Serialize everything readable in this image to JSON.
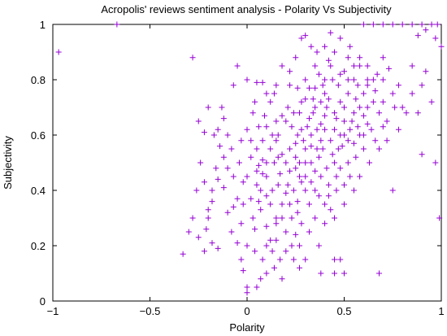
{
  "chart_data": {
    "type": "scatter",
    "title": "Acropolis' reviews sentiment analysis - Polarity Vs Subjectivity",
    "xlabel": "Polarity",
    "ylabel": "Subjectivity",
    "xlim": [
      -1,
      1
    ],
    "ylim": [
      0,
      1
    ],
    "xticks": [
      {
        "value": -1,
        "label": "−1"
      },
      {
        "value": -0.5,
        "label": "−0.5"
      },
      {
        "value": 0,
        "label": "0"
      },
      {
        "value": 0.5,
        "label": "0.5"
      },
      {
        "value": 1,
        "label": "1"
      }
    ],
    "yticks": [
      {
        "value": 0,
        "label": "0"
      },
      {
        "value": 0.2,
        "label": "0.2"
      },
      {
        "value": 0.4,
        "label": "0.4"
      },
      {
        "value": 0.6,
        "label": "0.6"
      },
      {
        "value": 0.8,
        "label": "0.8"
      },
      {
        "value": 1,
        "label": "1"
      }
    ],
    "grid": false,
    "marker": "plus",
    "marker_color": "#9400d3",
    "series": [
      {
        "points": [
          [
            -0.97,
            0.9
          ],
          [
            -0.67,
            1.0
          ],
          [
            -0.28,
            0.88
          ],
          [
            -0.33,
            0.17
          ],
          [
            -0.3,
            0.25
          ],
          [
            -0.25,
            0.23
          ],
          [
            -0.26,
            0.4
          ],
          [
            -0.24,
            0.5
          ],
          [
            -0.22,
            0.43
          ],
          [
            -0.2,
            0.3
          ],
          [
            -0.18,
            0.21
          ],
          [
            -0.18,
            0.36
          ],
          [
            -0.15,
            0.19
          ],
          [
            -0.25,
            0.65
          ],
          [
            -0.22,
            0.61
          ],
          [
            -0.2,
            0.7
          ],
          [
            -0.14,
            0.56
          ],
          [
            -0.12,
            0.66
          ],
          [
            -0.1,
            0.48
          ],
          [
            -0.08,
            0.25
          ],
          [
            -0.07,
            0.34
          ],
          [
            -0.07,
            0.45
          ],
          [
            -0.05,
            0.21
          ],
          [
            -0.03,
            0.58
          ],
          [
            -0.05,
            0.85
          ],
          [
            -0.07,
            0.78
          ],
          [
            -0.13,
            0.7
          ],
          [
            -0.15,
            0.62
          ],
          [
            -0.17,
            0.6
          ],
          [
            -0.21,
            0.26
          ],
          [
            -0.16,
            0.48
          ],
          [
            -0.12,
            0.41
          ],
          [
            -0.1,
            0.32
          ],
          [
            -0.05,
            0.37
          ],
          [
            -0.03,
            0.28
          ],
          [
            -0.02,
            0.43
          ],
          [
            0.0,
            0.2
          ],
          [
            -0.03,
            0.15
          ],
          [
            -0.02,
            0.11
          ],
          [
            0.0,
            0.05
          ],
          [
            0.0,
            0.03
          ],
          [
            0.05,
            0.05
          ],
          [
            0.03,
            0.3
          ],
          [
            0.02,
            0.37
          ],
          [
            0.0,
            0.45
          ],
          [
            0.02,
            0.52
          ],
          [
            0.0,
            0.62
          ],
          [
            0.03,
            0.68
          ],
          [
            0.0,
            0.8
          ],
          [
            0.05,
            0.79
          ],
          [
            0.08,
            0.79
          ],
          [
            0.1,
            0.1
          ],
          [
            0.12,
            0.22
          ],
          [
            0.1,
            0.27
          ],
          [
            0.07,
            0.33
          ],
          [
            0.1,
            0.38
          ],
          [
            0.08,
            0.46
          ],
          [
            0.06,
            0.49
          ],
          [
            0.05,
            0.55
          ],
          [
            0.08,
            0.58
          ],
          [
            0.1,
            0.63
          ],
          [
            0.09,
            0.67
          ],
          [
            0.12,
            0.72
          ],
          [
            0.14,
            0.75
          ],
          [
            0.16,
            0.42
          ],
          [
            0.14,
            0.5
          ],
          [
            0.18,
            0.53
          ],
          [
            0.16,
            0.6
          ],
          [
            0.2,
            0.65
          ],
          [
            0.21,
            0.7
          ],
          [
            0.22,
            0.78
          ],
          [
            0.22,
            0.83
          ],
          [
            0.2,
            0.39
          ],
          [
            0.22,
            0.47
          ],
          [
            0.23,
            0.3
          ],
          [
            0.25,
            0.24
          ],
          [
            0.27,
            0.2
          ],
          [
            0.24,
            0.15
          ],
          [
            0.28,
            0.43
          ],
          [
            0.27,
            0.5
          ],
          [
            0.25,
            0.57
          ],
          [
            0.28,
            0.62
          ],
          [
            0.27,
            0.68
          ],
          [
            0.3,
            0.73
          ],
          [
            0.3,
            0.8
          ],
          [
            0.3,
            0.55
          ],
          [
            0.33,
            0.5
          ],
          [
            0.33,
            0.6
          ],
          [
            0.32,
            0.66
          ],
          [
            0.35,
            0.7
          ],
          [
            0.35,
            0.77
          ],
          [
            0.35,
            0.85
          ],
          [
            0.33,
            0.92
          ],
          [
            0.3,
            0.96
          ],
          [
            0.28,
            0.95
          ],
          [
            0.32,
            0.35
          ],
          [
            0.35,
            0.4
          ],
          [
            0.38,
            0.45
          ],
          [
            0.37,
            0.52
          ],
          [
            0.38,
            0.58
          ],
          [
            0.4,
            0.62
          ],
          [
            0.4,
            0.67
          ],
          [
            0.42,
            0.73
          ],
          [
            0.4,
            0.8
          ],
          [
            0.43,
            0.85
          ],
          [
            0.45,
            0.9
          ],
          [
            0.43,
            0.97
          ],
          [
            0.38,
            0.1
          ],
          [
            0.45,
            0.1
          ],
          [
            0.5,
            0.1
          ],
          [
            0.48,
            0.15
          ],
          [
            0.45,
            0.3
          ],
          [
            0.42,
            0.38
          ],
          [
            0.46,
            0.45
          ],
          [
            0.45,
            0.5
          ],
          [
            0.47,
            0.55
          ],
          [
            0.48,
            0.6
          ],
          [
            0.5,
            0.65
          ],
          [
            0.5,
            0.7
          ],
          [
            0.52,
            0.75
          ],
          [
            0.55,
            0.8
          ],
          [
            0.55,
            0.68
          ],
          [
            0.53,
            0.62
          ],
          [
            0.55,
            0.57
          ],
          [
            0.52,
            0.5
          ],
          [
            0.5,
            0.42
          ],
          [
            0.55,
            0.85
          ],
          [
            0.58,
            0.88
          ],
          [
            0.6,
            0.75
          ],
          [
            0.62,
            0.8
          ],
          [
            0.6,
            0.67
          ],
          [
            0.58,
            0.6
          ],
          [
            0.62,
            0.7
          ],
          [
            0.65,
            0.72
          ],
          [
            0.65,
            0.8
          ],
          [
            0.7,
            0.8
          ],
          [
            0.75,
            0.75
          ],
          [
            0.72,
            0.65
          ],
          [
            0.8,
            0.7
          ],
          [
            0.75,
            0.4
          ],
          [
            0.68,
            0.1
          ],
          [
            0.6,
            1.0
          ],
          [
            0.65,
            1.0
          ],
          [
            0.7,
            1.0
          ],
          [
            0.75,
            1.0
          ],
          [
            0.8,
            1.0
          ],
          [
            0.85,
            1.0
          ],
          [
            0.9,
            1.0
          ],
          [
            0.95,
            1.0
          ],
          [
            0.98,
            1.0
          ],
          [
            0.88,
            0.96
          ],
          [
            0.92,
            0.98
          ],
          [
            0.97,
            0.95
          ],
          [
            1.0,
            0.92
          ],
          [
            0.85,
            0.85
          ],
          [
            0.92,
            0.83
          ],
          [
            0.95,
            0.72
          ],
          [
            0.9,
            0.53
          ],
          [
            0.97,
            0.5
          ],
          [
            0.99,
            0.3
          ],
          [
            0.12,
            0.55
          ],
          [
            0.15,
            0.58
          ],
          [
            0.17,
            0.46
          ],
          [
            0.13,
            0.4
          ],
          [
            0.1,
            0.45
          ],
          [
            0.18,
            0.35
          ],
          [
            0.15,
            0.3
          ],
          [
            0.2,
            0.25
          ],
          [
            0.22,
            0.35
          ],
          [
            0.24,
            0.4
          ],
          [
            0.26,
            0.36
          ],
          [
            0.3,
            0.4
          ],
          [
            0.3,
            0.45
          ],
          [
            0.25,
            0.48
          ],
          [
            0.22,
            0.55
          ],
          [
            0.26,
            0.6
          ],
          [
            0.23,
            0.63
          ],
          [
            0.18,
            0.67
          ],
          [
            0.15,
            0.65
          ],
          [
            0.13,
            0.6
          ],
          [
            0.08,
            0.51
          ],
          [
            0.05,
            0.42
          ],
          [
            0.05,
            0.47
          ],
          [
            0.07,
            0.4
          ],
          [
            0.12,
            0.35
          ],
          [
            0.1,
            0.2
          ],
          [
            0.13,
            0.18
          ],
          [
            0.17,
            0.15
          ],
          [
            0.2,
            0.18
          ],
          [
            0.26,
            0.32
          ],
          [
            0.28,
            0.28
          ],
          [
            0.32,
            0.25
          ],
          [
            0.35,
            0.3
          ],
          [
            0.4,
            0.35
          ],
          [
            0.42,
            0.42
          ],
          [
            0.35,
            0.47
          ],
          [
            0.36,
            0.55
          ],
          [
            0.43,
            0.58
          ],
          [
            0.45,
            0.62
          ],
          [
            0.38,
            0.64
          ],
          [
            0.34,
            0.68
          ],
          [
            0.38,
            0.72
          ],
          [
            0.45,
            0.68
          ],
          [
            0.48,
            0.72
          ],
          [
            0.47,
            0.78
          ],
          [
            0.4,
            0.75
          ],
          [
            0.37,
            0.82
          ],
          [
            0.42,
            0.87
          ],
          [
            0.5,
            0.83
          ],
          [
            0.52,
            0.88
          ],
          [
            0.56,
            0.73
          ],
          [
            0.58,
            0.7
          ],
          [
            0.54,
            0.65
          ],
          [
            0.5,
            0.6
          ],
          [
            0.57,
            0.63
          ],
          [
            0.6,
            0.6
          ],
          [
            0.62,
            0.64
          ],
          [
            0.6,
            0.55
          ],
          [
            0.56,
            0.52
          ],
          [
            0.53,
            0.45
          ],
          [
            0.48,
            0.48
          ],
          [
            0.46,
            0.4
          ],
          [
            0.43,
            0.33
          ],
          [
            0.4,
            0.28
          ],
          [
            0.37,
            0.2
          ],
          [
            0.3,
            0.15
          ],
          [
            0.27,
            0.12
          ],
          [
            0.18,
            0.08
          ],
          [
            0.1,
            0.5
          ],
          [
            0.2,
            0.5
          ],
          [
            0.3,
            0.5
          ],
          [
            0.25,
            0.52
          ],
          [
            0.16,
            0.52
          ],
          [
            0.06,
            0.36
          ],
          [
            -0.02,
            0.35
          ],
          [
            0.04,
            0.26
          ],
          [
            0.08,
            0.15
          ],
          [
            0.15,
            0.22
          ],
          [
            0.21,
            0.42
          ],
          [
            0.27,
            0.45
          ],
          [
            0.33,
            0.43
          ],
          [
            0.37,
            0.38
          ],
          [
            0.41,
            0.48
          ],
          [
            0.39,
            0.55
          ],
          [
            0.44,
            0.53
          ],
          [
            0.49,
            0.56
          ],
          [
            0.52,
            0.58
          ],
          [
            0.46,
            0.66
          ],
          [
            0.41,
            0.7
          ],
          [
            0.36,
            0.62
          ],
          [
            0.31,
            0.63
          ],
          [
            0.29,
            0.58
          ],
          [
            0.33,
            0.56
          ],
          [
            0.24,
            0.68
          ],
          [
            0.28,
            0.72
          ],
          [
            0.26,
            0.77
          ],
          [
            0.32,
            0.77
          ],
          [
            0.34,
            0.73
          ],
          [
            0.39,
            0.78
          ],
          [
            0.44,
            0.8
          ],
          [
            0.48,
            0.82
          ],
          [
            0.52,
            0.8
          ],
          [
            0.57,
            0.78
          ],
          [
            0.62,
            0.85
          ],
          [
            0.66,
            0.76
          ],
          [
            0.7,
            0.72
          ],
          [
            0.68,
            0.68
          ],
          [
            0.64,
            0.62
          ],
          [
            0.66,
            0.58
          ],
          [
            0.7,
            0.88
          ],
          [
            0.58,
            0.85
          ],
          [
            0.53,
            0.92
          ],
          [
            0.48,
            0.95
          ],
          [
            0.4,
            0.92
          ],
          [
            0.36,
            0.9
          ],
          [
            0.25,
            0.88
          ],
          [
            0.18,
            0.85
          ],
          [
            0.15,
            0.78
          ],
          [
            0.1,
            0.75
          ],
          [
            0.04,
            0.72
          ],
          [
            0.06,
            0.63
          ],
          [
            0.02,
            0.58
          ],
          [
            -0.04,
            0.5
          ],
          [
            -0.08,
            0.55
          ],
          [
            -0.1,
            0.6
          ],
          [
            -0.12,
            0.52
          ],
          [
            -0.15,
            0.44
          ],
          [
            -0.18,
            0.4
          ],
          [
            -0.2,
            0.33
          ],
          [
            -0.22,
            0.18
          ],
          [
            -0.28,
            0.3
          ],
          [
            0.62,
            0.78
          ],
          [
            0.67,
            0.82
          ],
          [
            0.73,
            0.84
          ],
          [
            0.78,
            0.78
          ],
          [
            0.76,
            0.7
          ],
          [
            0.7,
            0.63
          ],
          [
            0.15,
            0.28
          ],
          [
            0.18,
            0.3
          ],
          [
            0.23,
            0.2
          ],
          [
            0.14,
            0.12
          ],
          [
            0.07,
            0.08
          ],
          [
            0.04,
            0.18
          ],
          [
            0.45,
            0.15
          ],
          [
            0.5,
            0.35
          ],
          [
            0.55,
            0.4
          ],
          [
            0.58,
            0.45
          ],
          [
            0.63,
            0.5
          ],
          [
            0.68,
            0.55
          ],
          [
            0.72,
            0.58
          ],
          [
            0.78,
            0.62
          ],
          [
            0.82,
            0.68
          ],
          [
            0.85,
            0.75
          ],
          [
            0.9,
            0.78
          ],
          [
            0.88,
            0.68
          ]
        ]
      }
    ]
  }
}
